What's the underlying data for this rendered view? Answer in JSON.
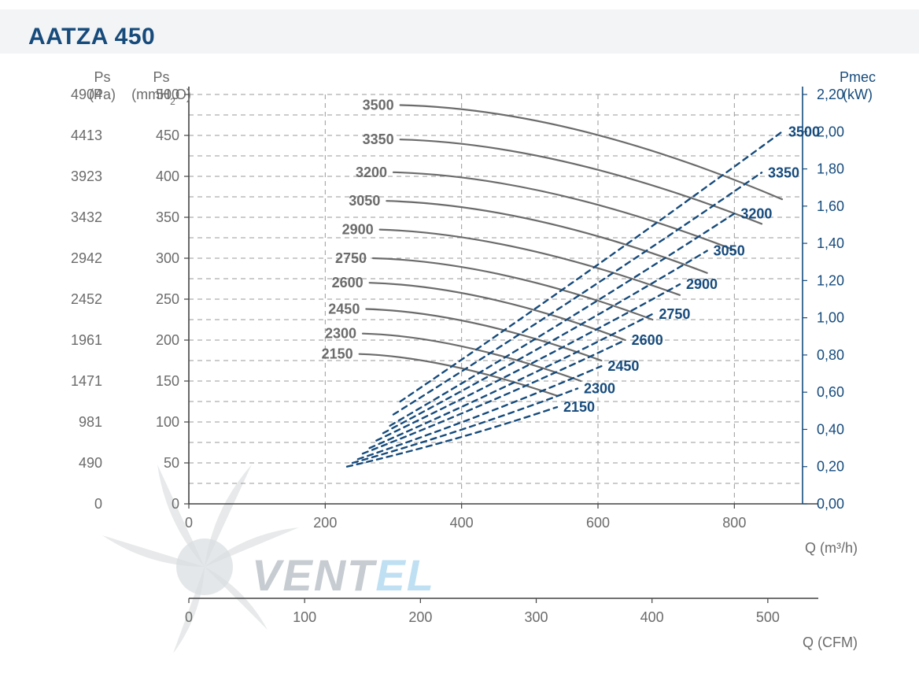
{
  "title": "AATZA 450",
  "colors": {
    "title": "#164b7c",
    "title_bg": "#f3f4f5",
    "axis_gray": "#6b6b6b",
    "axis_blue": "#164b7c",
    "grid_dash": "#9a9a9a",
    "grid_vert": "#9a9a9a",
    "axis_line": "#444444",
    "curve_gray": "#6b6b6b",
    "curve_blue": "#164b7c",
    "watermark_hub": "#d9dde0",
    "watermark_blade": "#cfd3d6",
    "watermark_text_dark": "#c6ccd1",
    "watermark_text_light": "#bfe0f2"
  },
  "plot": {
    "x_min": 0,
    "x_max": 900,
    "y_mm_min": 0,
    "y_mm_max": 500,
    "y_kw_min": 0,
    "y_kw_max": 2.2,
    "cfm_min": 0,
    "cfm_max": 530
  },
  "axis_titles": {
    "ps_pa": [
      "Ps",
      "(Pa)"
    ],
    "ps_mm": [
      "Ps",
      "(mmH",
      "2",
      "O)"
    ],
    "pmec": [
      "Pmec",
      "(kW)"
    ],
    "q_m3h": "Q (m³/h)",
    "q_cfm": "Q (CFM)"
  },
  "y_ticks": {
    "pa": [
      0,
      490,
      981,
      1471,
      1961,
      2452,
      2942,
      3432,
      3923,
      4413,
      4904
    ],
    "mm": [
      0,
      50,
      100,
      150,
      200,
      250,
      300,
      350,
      400,
      450,
      500
    ],
    "kw": [
      "0,00",
      "0,20",
      "0,40",
      "0,60",
      "0,80",
      "1,00",
      "1,20",
      "1,40",
      "1,60",
      "1,80",
      "2,00",
      "2,20"
    ]
  },
  "x_ticks_m3h": [
    0,
    200,
    400,
    600,
    800
  ],
  "x_ticks_cfm": [
    0,
    100,
    200,
    300,
    400,
    500
  ],
  "y_grid_minor_mm": [
    25,
    75,
    125,
    175,
    225,
    275,
    325,
    375,
    425,
    475
  ],
  "y_grid_right_kw": [
    0.1,
    0.3,
    0.5,
    0.7,
    0.9,
    1.1,
    1.3,
    1.5,
    1.7,
    1.9,
    2.1
  ],
  "x_grid_vert": [
    200,
    400,
    600,
    800
  ],
  "pressure_curves": [
    {
      "label": "3500",
      "start": [
        310,
        487
      ],
      "ctrl": [
        560,
        482
      ],
      "end": [
        870,
        372
      ]
    },
    {
      "label": "3350",
      "start": [
        310,
        445
      ],
      "ctrl": [
        540,
        440
      ],
      "end": [
        840,
        342
      ]
    },
    {
      "label": "3200",
      "start": [
        300,
        405
      ],
      "ctrl": [
        520,
        400
      ],
      "end": [
        800,
        310
      ]
    },
    {
      "label": "3050",
      "start": [
        290,
        370
      ],
      "ctrl": [
        500,
        365
      ],
      "end": [
        760,
        282
      ]
    },
    {
      "label": "2900",
      "start": [
        280,
        335
      ],
      "ctrl": [
        470,
        330
      ],
      "end": [
        720,
        255
      ]
    },
    {
      "label": "2750",
      "start": [
        270,
        300
      ],
      "ctrl": [
        450,
        296
      ],
      "end": [
        680,
        225
      ]
    },
    {
      "label": "2600",
      "start": [
        265,
        270
      ],
      "ctrl": [
        430,
        266
      ],
      "end": [
        640,
        200
      ]
    },
    {
      "label": "2450",
      "start": [
        260,
        238
      ],
      "ctrl": [
        410,
        234
      ],
      "end": [
        605,
        175
      ]
    },
    {
      "label": "2300",
      "start": [
        255,
        208
      ],
      "ctrl": [
        390,
        205
      ],
      "end": [
        575,
        150
      ]
    },
    {
      "label": "2150",
      "start": [
        250,
        183
      ],
      "ctrl": [
        370,
        180
      ],
      "end": [
        540,
        132
      ]
    }
  ],
  "power_curves": [
    {
      "label": "3500",
      "start": [
        310,
        0.55
      ],
      "end": [
        870,
        2.0
      ]
    },
    {
      "label": "3350",
      "start": [
        300,
        0.48
      ],
      "end": [
        840,
        1.78
      ]
    },
    {
      "label": "3200",
      "start": [
        295,
        0.42
      ],
      "end": [
        800,
        1.56
      ]
    },
    {
      "label": "3050",
      "start": [
        285,
        0.38
      ],
      "end": [
        760,
        1.36
      ]
    },
    {
      "label": "2900",
      "start": [
        275,
        0.34
      ],
      "end": [
        720,
        1.18
      ]
    },
    {
      "label": "2750",
      "start": [
        265,
        0.3
      ],
      "end": [
        680,
        1.02
      ]
    },
    {
      "label": "2600",
      "start": [
        255,
        0.27
      ],
      "end": [
        640,
        0.88
      ]
    },
    {
      "label": "2450",
      "start": [
        248,
        0.24
      ],
      "end": [
        605,
        0.74
      ]
    },
    {
      "label": "2300",
      "start": [
        240,
        0.22
      ],
      "end": [
        570,
        0.62
      ]
    },
    {
      "label": "2150",
      "start": [
        232,
        0.2
      ],
      "end": [
        540,
        0.52
      ]
    }
  ],
  "style": {
    "grid_dash_pattern": "6,5",
    "curve_dash_pattern": "7,6",
    "pressure_line_width": 2.2,
    "power_line_width": 2.4,
    "axis_line_width": 1.6
  },
  "watermark": "VENTEL"
}
